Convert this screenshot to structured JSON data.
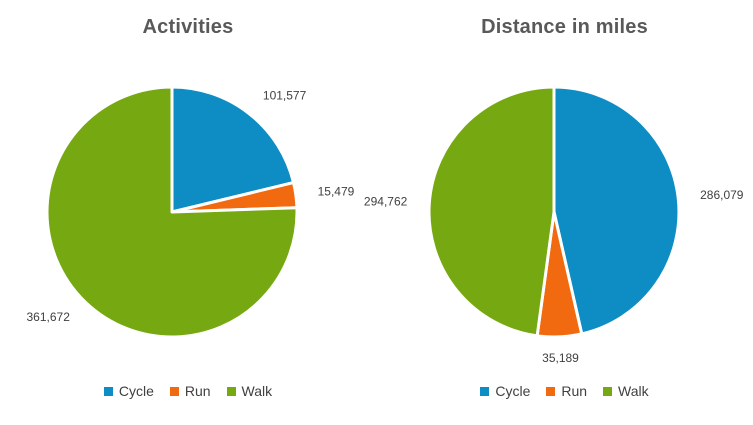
{
  "chart_data": [
    {
      "type": "pie",
      "title": "Activities",
      "categories": [
        "Cycle",
        "Run",
        "Walk"
      ],
      "values": [
        101577,
        15479,
        361672
      ],
      "value_labels": [
        "101,577",
        "15,479",
        "361,672"
      ],
      "colors": [
        "#0e8dc4",
        "#f26a10",
        "#76a811"
      ],
      "legend": "bottom"
    },
    {
      "type": "pie",
      "title": "Distance in miles",
      "categories": [
        "Cycle",
        "Run",
        "Walk"
      ],
      "values": [
        286079,
        35189,
        294762
      ],
      "value_labels": [
        "286,079",
        "35,189",
        "294,762"
      ],
      "colors": [
        "#0e8dc4",
        "#f26a10",
        "#76a811"
      ],
      "legend": "bottom"
    }
  ]
}
